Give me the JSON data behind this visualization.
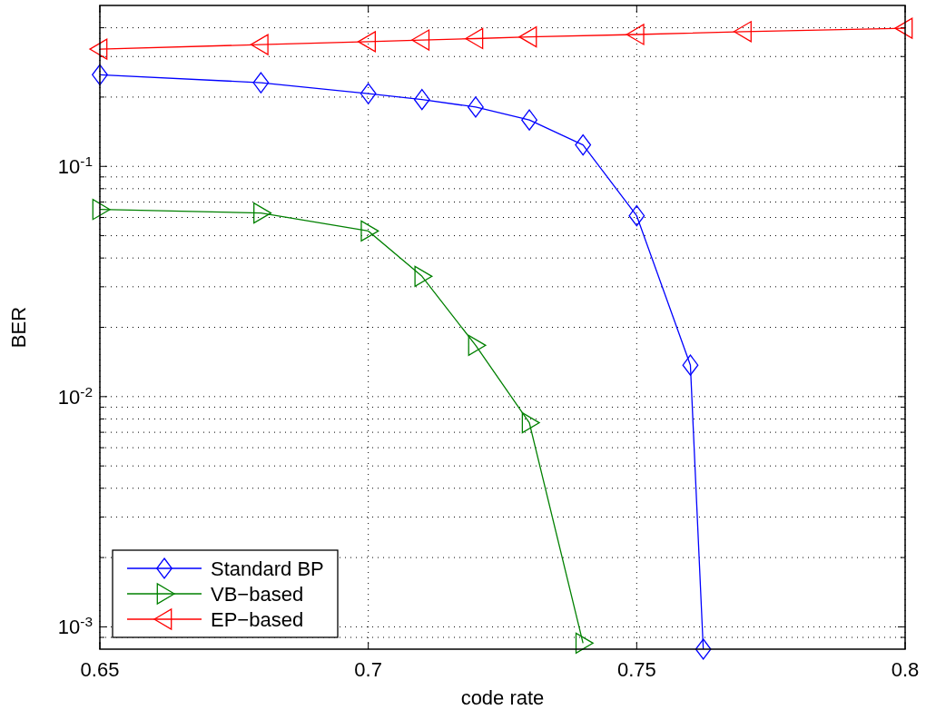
{
  "chart_data": {
    "type": "line",
    "xlabel": "code rate",
    "ylabel": "BER",
    "log": "y",
    "grid": true,
    "legend": "bottom left",
    "xlim": [
      0.65,
      0.8
    ],
    "xticks": [
      0.65,
      0.7,
      0.75,
      0.8
    ],
    "ylim": [
      0.0008,
      0.5
    ],
    "yticks": [
      {
        "value": 0.0009,
        "label": null
      },
      {
        "value": 0.001,
        "label": "10$^{-3}$"
      },
      {
        "value": 0.002,
        "label": null
      },
      {
        "value": 0.003,
        "label": null
      },
      {
        "value": 0.004,
        "label": null
      },
      {
        "value": 0.005,
        "label": null
      },
      {
        "value": 0.006,
        "label": null
      },
      {
        "value": 0.007,
        "label": null
      },
      {
        "value": 0.008,
        "label": null
      },
      {
        "value": 0.009,
        "label": null
      },
      {
        "value": 0.01,
        "label": "10$^{-2}$"
      },
      {
        "value": 0.02,
        "label": null
      },
      {
        "value": 0.03,
        "label": null
      },
      {
        "value": 0.04,
        "label": null
      },
      {
        "value": 0.05,
        "label": null
      },
      {
        "value": 0.06,
        "label": null
      },
      {
        "value": 0.07,
        "label": null
      },
      {
        "value": 0.08,
        "label": null
      },
      {
        "value": 0.09,
        "label": null
      },
      {
        "value": 0.1,
        "label": "10$^{-1}$"
      },
      {
        "value": 0.2,
        "label": null
      },
      {
        "value": 0.3,
        "label": null
      },
      {
        "value": 0.4,
        "label": null
      }
    ],
    "series": [
      {
        "name": "Standard BP",
        "color": "#0000ff",
        "marker": "diamond",
        "x": [
          0.65,
          0.68,
          0.7,
          0.71,
          0.72,
          0.73,
          0.74,
          0.75,
          0.76,
          0.7624
        ],
        "values": [
          0.25,
          0.231,
          0.207,
          0.195,
          0.181,
          0.159,
          0.124,
          0.061,
          0.0137,
          0.0008
        ]
      },
      {
        "name": "VB−based",
        "color": "#008000",
        "marker": "triangle-right",
        "x": [
          0.65,
          0.68,
          0.7,
          0.71,
          0.72,
          0.73,
          0.74
        ],
        "values": [
          0.065,
          0.0627,
          0.0524,
          0.0333,
          0.0167,
          0.0077,
          0.00085
        ]
      },
      {
        "name": "EP−based",
        "color": "#ff0000",
        "marker": "triangle-left",
        "x": [
          0.65,
          0.68,
          0.7,
          0.71,
          0.72,
          0.73,
          0.75,
          0.77,
          0.8
        ],
        "values": [
          0.323,
          0.338,
          0.348,
          0.354,
          0.359,
          0.365,
          0.374,
          0.385,
          0.398
        ]
      }
    ]
  }
}
